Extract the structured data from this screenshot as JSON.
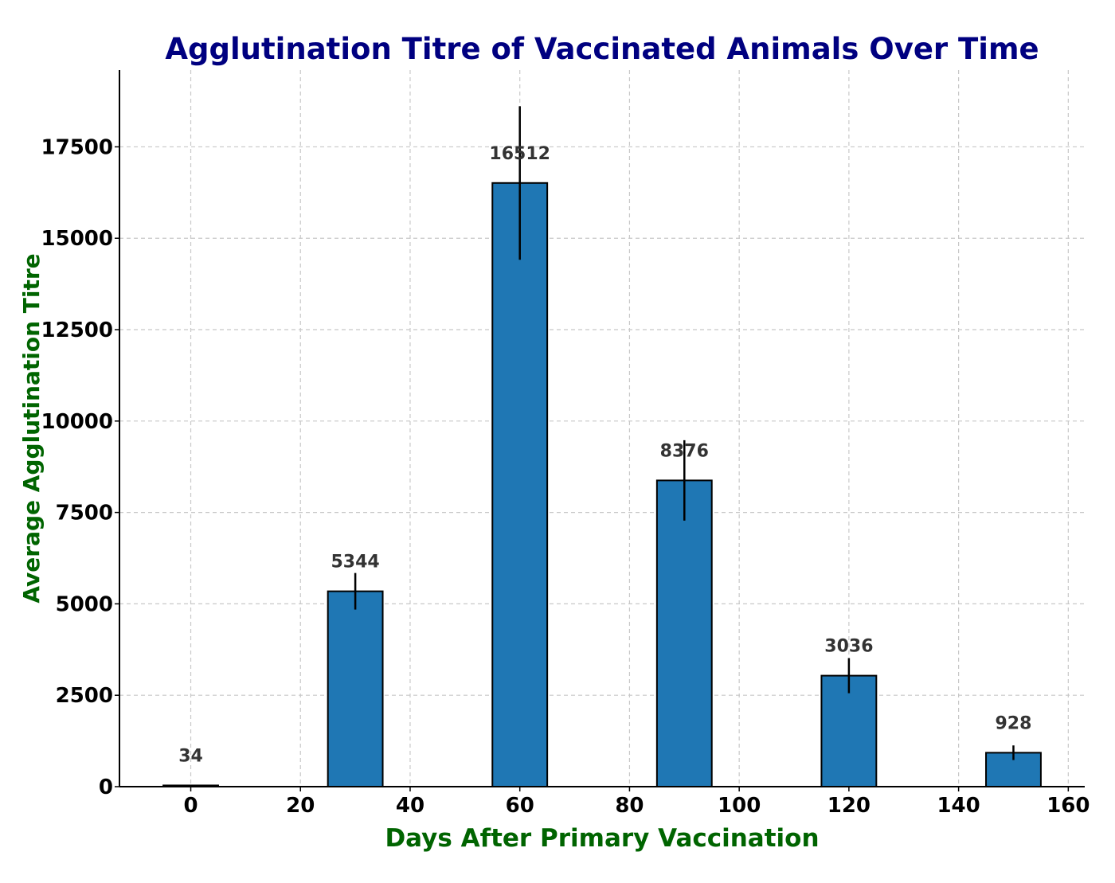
{
  "colors": {
    "bar": "#1f77b4",
    "bar_edge": "#000000",
    "title": "#000080",
    "axis_label": "#006400",
    "data_label": "#333333",
    "grid": "#c8c8c8"
  },
  "chart_data": {
    "type": "bar",
    "title": "Agglutination Titre of Vaccinated Animals Over Time",
    "xlabel": "Days After Primary Vaccination",
    "ylabel": "Average Agglutination Titre",
    "x": [
      0,
      30,
      60,
      90,
      120,
      150
    ],
    "values": [
      34,
      5344,
      16512,
      8376,
      3036,
      928
    ],
    "errors": [
      0,
      500,
      2100,
      1100,
      480,
      200
    ],
    "bar_width": 10,
    "data_labels": [
      "34",
      "5344",
      "16512",
      "8376",
      "3036",
      "928"
    ],
    "xlim": [
      -13,
      163
    ],
    "ylim": [
      0,
      19600
    ],
    "xticks": [
      0,
      20,
      40,
      60,
      80,
      100,
      120,
      140,
      160
    ],
    "xtick_labels": [
      "0",
      "20",
      "40",
      "60",
      "80",
      "100",
      "120",
      "140",
      "160"
    ],
    "yticks": [
      0,
      2500,
      5000,
      7500,
      10000,
      12500,
      15000,
      17500
    ],
    "ytick_labels": [
      "0",
      "2500",
      "5000",
      "7500",
      "10000",
      "12500",
      "15000",
      "17500"
    ],
    "grid": true,
    "grid_style": "dashed"
  }
}
